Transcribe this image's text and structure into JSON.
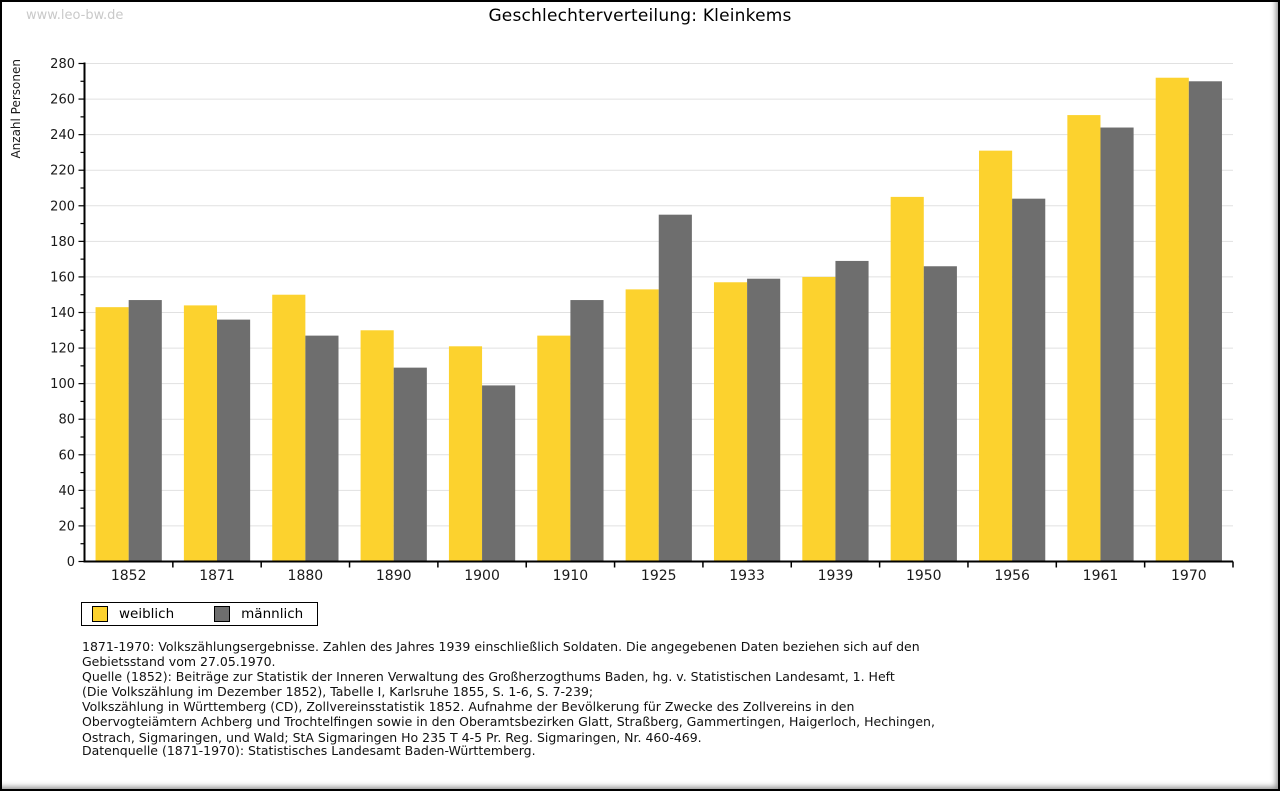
{
  "page": {
    "watermark": "www.leo-bw.de",
    "title": "Geschlechterverteilung: Kleinkems"
  },
  "colors": {
    "female_yellow": "#fcd22e",
    "male_gray": "#6e6e6e",
    "gridline": "#e1e1e1",
    "axis": "#000000",
    "watermark_gray": "#c9c9c9"
  },
  "chart_data": {
    "type": "bar",
    "title": "Geschlechterverteilung: Kleinkems",
    "xlabel": "",
    "ylabel": "Anzahl Personen",
    "categories": [
      "1852",
      "1871",
      "1880",
      "1890",
      "1900",
      "1910",
      "1925",
      "1933",
      "1939",
      "1950",
      "1956",
      "1961",
      "1970"
    ],
    "series": [
      {
        "name": "weiblich",
        "color": "#fcd22e",
        "values": [
          143,
          144,
          150,
          130,
          121,
          127,
          153,
          157,
          160,
          205,
          231,
          251,
          272
        ]
      },
      {
        "name": "männlich",
        "color": "#6e6e6e",
        "values": [
          147,
          136,
          127,
          109,
          99,
          147,
          195,
          159,
          169,
          166,
          204,
          244,
          270
        ]
      }
    ],
    "ylim": [
      0,
      280
    ],
    "ytick_step": 20,
    "yminor_step": 10,
    "grid": true,
    "legend_position": "bottom-left"
  },
  "footer": {
    "lines": [
      "1871-1970: Volkszählungsergebnisse. Zahlen des Jahres 1939 einschließlich Soldaten. Die angegebenen Daten beziehen sich auf den",
      "Gebietsstand vom 27.05.1970.",
      "Quelle (1852): Beiträge zur Statistik der Inneren Verwaltung des Großherzogthums Baden, hg. v. Statistischen Landesamt, 1. Heft",
      "(Die Volkszählung im Dezember 1852), Tabelle I, Karlsruhe 1855, S. 1-6, S. 7-239;",
      "Volkszählung in Württemberg (CD), Zollvereinsstatistik 1852. Aufnahme der Bevölkerung für Zwecke des Zollvereins in den",
      "Obervogteiämtern Achberg und Trochtelfingen sowie in den Oberamtsbezirken Glatt, Straßberg, Gammertingen, Haigerloch, Hechingen,",
      "Ostrach, Sigmaringen, und Wald; StA Sigmaringen Ho 235 T 4-5 Pr. Reg. Sigmaringen, Nr. 460-469."
    ],
    "datasource": "Datenquelle (1871-1970): Statistisches Landesamt Baden-Württemberg."
  }
}
